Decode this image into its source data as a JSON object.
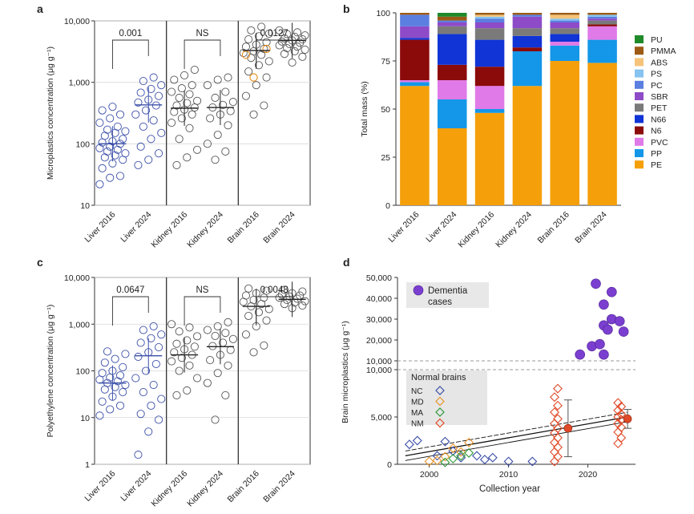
{
  "colors": {
    "blue": "#3b4fa8",
    "orange": "#e8952a",
    "green": "#2e9a3a",
    "red": "#e04a28",
    "purple": "#7b3fd0",
    "grid": "#d8d8d8"
  },
  "chart_data": [
    {
      "panel": "a",
      "type": "scatter",
      "ylabel": "Microplastics concentration (μg g⁻¹)",
      "yscale": "log",
      "ylim": [
        10,
        10000
      ],
      "yticks": [
        "10",
        "100",
        "1,000",
        "10,000"
      ],
      "categories": [
        "Liver 2016",
        "Liver 2024",
        "Kidney 2016",
        "Kidney 2024",
        "Brain 2016",
        "Brain 2024"
      ],
      "medians": [
        100,
        430,
        380,
        390,
        3300,
        4800
      ],
      "points": [
        [
          22,
          28,
          30,
          40,
          48,
          55,
          60,
          65,
          70,
          75,
          80,
          85,
          90,
          100,
          105,
          110,
          120,
          135,
          150,
          160,
          170,
          190,
          220,
          260,
          300,
          350,
          400
        ],
        [
          45,
          55,
          70,
          90,
          120,
          150,
          190,
          240,
          300,
          350,
          420,
          470,
          520,
          600,
          680,
          780,
          900,
          1050,
          1200
        ],
        [
          45,
          60,
          80,
          120,
          180,
          220,
          260,
          300,
          330,
          360,
          390,
          420,
          460,
          500,
          560,
          640,
          700,
          800,
          900,
          1100,
          1300,
          1600
        ],
        [
          55,
          75,
          100,
          140,
          200,
          260,
          300,
          340,
          390,
          430,
          480,
          560,
          700,
          900,
          1100,
          1200
        ],
        [
          300,
          420,
          600,
          900,
          1200,
          1500,
          1900,
          2200,
          2500,
          2800,
          3000,
          3200,
          3500,
          3800,
          4100,
          4500,
          5000,
          5600,
          6200,
          7000,
          8000
        ],
        [
          2100,
          2600,
          2900,
          3200,
          3400,
          3600,
          3800,
          4000,
          4200,
          4400,
          4600,
          4800,
          5000,
          5200,
          5500,
          5800,
          6100,
          6500,
          7000
        ]
      ],
      "orange_points_brain2016": [
        1200,
        2800,
        3500
      ],
      "annotations": [
        {
          "label": "0.001",
          "between": [
            "Liver 2016",
            "Liver 2024"
          ]
        },
        {
          "label": "NS",
          "between": [
            "Kidney 2016",
            "Kidney 2024"
          ]
        },
        {
          "label": "0.0127",
          "between": [
            "Brain 2016",
            "Brain 2024"
          ]
        }
      ]
    },
    {
      "panel": "b",
      "type": "bar",
      "stacked": true,
      "ylabel": "Total mass (%)",
      "ylim": [
        0,
        100
      ],
      "yticks": [
        "0",
        "25",
        "50",
        "75",
        "100"
      ],
      "categories": [
        "Liver 2016",
        "Liver 2024",
        "Kidney 2016",
        "Kidney 2024",
        "Brain 2016",
        "Brain 2024"
      ],
      "series": [
        {
          "name": "PE",
          "color": "#f5a00a",
          "values": [
            62,
            40,
            48,
            62,
            75,
            74
          ]
        },
        {
          "name": "PP",
          "color": "#1497e8",
          "values": [
            2,
            15,
            2,
            18,
            8,
            12
          ]
        },
        {
          "name": "PVC",
          "color": "#e07ae8",
          "values": [
            1,
            10,
            12,
            0,
            2,
            7
          ]
        },
        {
          "name": "N6",
          "color": "#8b0a0a",
          "values": [
            21,
            8,
            10,
            2,
            0,
            1
          ]
        },
        {
          "name": "N66",
          "color": "#1034d6",
          "values": [
            1,
            16,
            14,
            6,
            4,
            0
          ]
        },
        {
          "name": "PET",
          "color": "#7a7a7a",
          "values": [
            0,
            4,
            6,
            4,
            3,
            2
          ]
        },
        {
          "name": "SBR",
          "color": "#8e4bc8",
          "values": [
            6,
            2,
            3,
            6,
            3,
            1
          ]
        },
        {
          "name": "PC",
          "color": "#5b7fe0",
          "values": [
            6,
            1,
            2,
            1,
            1,
            1
          ]
        },
        {
          "name": "PS",
          "color": "#86c3f0",
          "values": [
            0,
            0,
            1,
            0,
            1,
            1
          ]
        },
        {
          "name": "ABS",
          "color": "#f5c37a",
          "values": [
            0,
            0,
            1,
            0,
            2,
            0
          ]
        },
        {
          "name": "PMMA",
          "color": "#9c5a14",
          "values": [
            1,
            2,
            1,
            1,
            1,
            1
          ]
        },
        {
          "name": "PU",
          "color": "#1f8a2a",
          "values": [
            0,
            2,
            0,
            0,
            0,
            0
          ]
        }
      ],
      "legend": [
        "PU",
        "PMMA",
        "ABS",
        "PS",
        "PC",
        "SBR",
        "PET",
        "N66",
        "N6",
        "PVC",
        "PP",
        "PE"
      ],
      "legend_position": "right"
    },
    {
      "panel": "c",
      "type": "scatter",
      "ylabel": "Polyethylene concentration (μg g⁻¹)",
      "yscale": "log",
      "ylim": [
        1,
        10000
      ],
      "yticks": [
        "1",
        "10",
        "100",
        "1,000",
        "10,000"
      ],
      "categories": [
        "Liver 2016",
        "Liver 2024",
        "Kidney 2016",
        "Kidney 2024",
        "Brain 2016",
        "Brain 2024"
      ],
      "medians": [
        55,
        210,
        220,
        330,
        2400,
        3400
      ],
      "points": [
        [
          11,
          15,
          18,
          22,
          28,
          35,
          40,
          45,
          50,
          55,
          60,
          65,
          72,
          80,
          90,
          100,
          120,
          150,
          180,
          230,
          260
        ],
        [
          1.6,
          5,
          9,
          12,
          18,
          25,
          35,
          50,
          70,
          100,
          140,
          200,
          250,
          320,
          400,
          500,
          600,
          750,
          900
        ],
        [
          30,
          38,
          70,
          100,
          130,
          160,
          190,
          220,
          250,
          290,
          330,
          380,
          450,
          550,
          700,
          850,
          1000
        ],
        [
          9,
          30,
          55,
          90,
          130,
          170,
          220,
          280,
          340,
          400,
          480,
          560,
          650,
          750,
          900,
          1100
        ],
        [
          250,
          350,
          600,
          900,
          1200,
          1500,
          1800,
          2100,
          2400,
          2700,
          3000,
          3300,
          3700,
          4100,
          4600,
          5200,
          5800
        ],
        [
          2200,
          2500,
          2700,
          2900,
          3100,
          3300,
          3500,
          3700,
          3900,
          4100,
          4300,
          4600,
          5000,
          5400
        ]
      ],
      "annotations": [
        {
          "label": "0.0647",
          "between": [
            "Liver 2016",
            "Liver 2024"
          ]
        },
        {
          "label": "NS",
          "between": [
            "Kidney 2016",
            "Kidney 2024"
          ]
        },
        {
          "label": "0.0048",
          "between": [
            "Brain 2016",
            "Brain 2024"
          ]
        }
      ]
    },
    {
      "panel": "d",
      "type": "scatter",
      "xlabel": "Collection year",
      "ylabel": "Brain microplastics (μg g⁻¹)",
      "xlim": [
        1996,
        2026
      ],
      "xticks": [
        "2000",
        "2010",
        "2020"
      ],
      "yticks_lower": [
        "0",
        "5,000",
        "10,000"
      ],
      "yticks_upper": [
        "10,000",
        "20,000",
        "30,000",
        "40,000",
        "50,000"
      ],
      "legend_title": "Normal brains",
      "legend_entries": [
        {
          "label": "NC",
          "color": "#3b4fa8"
        },
        {
          "label": "MD",
          "color": "#e8952a"
        },
        {
          "label": "MA",
          "color": "#2e9a3a"
        },
        {
          "label": "NM",
          "color": "#e04a28"
        }
      ],
      "dementia_label": "Dementia cases",
      "dementia": [
        {
          "x": 2019,
          "y": 13000
        },
        {
          "x": 2020.5,
          "y": 17000
        },
        {
          "x": 2021,
          "y": 47000
        },
        {
          "x": 2021.5,
          "y": 18000
        },
        {
          "x": 2022,
          "y": 37000
        },
        {
          "x": 2022,
          "y": 27000
        },
        {
          "x": 2022.5,
          "y": 25000
        },
        {
          "x": 2022,
          "y": 13000
        },
        {
          "x": 2023,
          "y": 43000
        },
        {
          "x": 2023,
          "y": 30000
        },
        {
          "x": 2024,
          "y": 29000
        },
        {
          "x": 2024.5,
          "y": 24000
        }
      ],
      "normal": {
        "NC": [
          [
            1997.5,
            2100
          ],
          [
            1998.5,
            2500
          ],
          [
            2001,
            900
          ],
          [
            2002,
            2400
          ],
          [
            2003,
            1400
          ],
          [
            2004,
            700
          ],
          [
            2006,
            900
          ],
          [
            2007,
            500
          ],
          [
            2008,
            700
          ],
          [
            2010,
            300
          ],
          [
            2013,
            300
          ]
        ],
        "MD": [
          [
            2000,
            300
          ],
          [
            2001,
            400
          ],
          [
            2002,
            800
          ],
          [
            2003,
            1700
          ],
          [
            2004,
            1300
          ],
          [
            2005,
            2300
          ]
        ],
        "MA": [
          [
            2002,
            200
          ],
          [
            2003,
            600
          ],
          [
            2004,
            900
          ],
          [
            2005,
            1200
          ]
        ],
        "NM": [
          [
            2016,
            300
          ],
          [
            2016,
            800
          ],
          [
            2016,
            1300
          ],
          [
            2016,
            1800
          ],
          [
            2016,
            2300
          ],
          [
            2016,
            2800
          ],
          [
            2016,
            3300
          ],
          [
            2016,
            3800
          ],
          [
            2016,
            4300
          ],
          [
            2016,
            4800
          ],
          [
            2016,
            5500
          ],
          [
            2016,
            6200
          ],
          [
            2016,
            7100
          ],
          [
            2016,
            8000
          ],
          [
            2024,
            2200
          ],
          [
            2024,
            2800
          ],
          [
            2024,
            3400
          ],
          [
            2024,
            3900
          ],
          [
            2024,
            4300
          ],
          [
            2024,
            4700
          ],
          [
            2024,
            5000
          ],
          [
            2024,
            5300
          ],
          [
            2024,
            5700
          ],
          [
            2024,
            6100
          ],
          [
            2024,
            6500
          ]
        ]
      },
      "means": [
        {
          "x": 2017.5,
          "y": 3800,
          "err": [
            800,
            6800
          ]
        },
        {
          "x": 2025,
          "y": 4800,
          "err": [
            3800,
            5800
          ]
        }
      ],
      "trend": {
        "x": [
          1997,
          2025
        ],
        "y": [
          900,
          5000
        ]
      }
    }
  ]
}
